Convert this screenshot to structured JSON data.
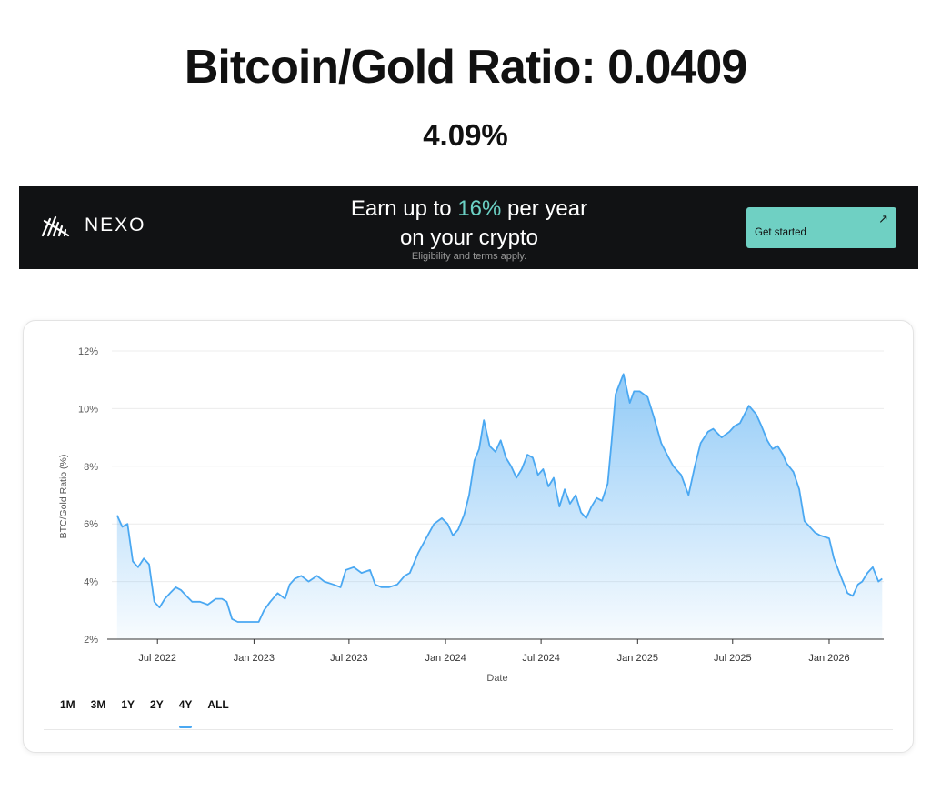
{
  "header": {
    "title": "Bitcoin/Gold Ratio: 0.0409",
    "subtitle": "4.09%"
  },
  "ad": {
    "logo_text": "NEXO",
    "headline_pre": "Earn up to ",
    "headline_highlight": "16%",
    "headline_post": " per year",
    "headline_line2": "on your crypto",
    "fineprint": "Eligibility and terms apply.",
    "cta_label": "Get started",
    "cta_icon": "arrow-up-right-icon",
    "accent_color": "#6fd0c3"
  },
  "range_tabs": {
    "items": [
      "1M",
      "3M",
      "1Y",
      "2Y",
      "4Y",
      "ALL"
    ],
    "active": "4Y",
    "active_color": "#4aa8f2"
  },
  "chart_data": {
    "type": "area",
    "title": "",
    "xlabel": "Date",
    "ylabel": "BTC/Gold Ratio (%)",
    "ylim": [
      2,
      12
    ],
    "yticks": [
      "2%",
      "4%",
      "6%",
      "8%",
      "10%",
      "12%"
    ],
    "xlim": [
      "2022-04-05",
      "2026-04-15"
    ],
    "xticks": [
      {
        "date": "2022-07-01",
        "label": "Jul 2022"
      },
      {
        "date": "2023-01-01",
        "label": "Jan 2023"
      },
      {
        "date": "2023-07-01",
        "label": "Jul 2023"
      },
      {
        "date": "2024-01-01",
        "label": "Jan 2024"
      },
      {
        "date": "2024-07-01",
        "label": "Jul 2024"
      },
      {
        "date": "2025-01-01",
        "label": "Jan 2025"
      },
      {
        "date": "2025-07-01",
        "label": "Jul 2025"
      },
      {
        "date": "2026-01-01",
        "label": "Jan 2026"
      }
    ],
    "grid": true,
    "line_color": "#4aa8f2",
    "series": [
      {
        "x": [
          "2022-04-15",
          "2022-04-25",
          "2022-05-05",
          "2022-05-15",
          "2022-05-25",
          "2022-06-05",
          "2022-06-15",
          "2022-06-25",
          "2022-07-05",
          "2022-07-15",
          "2022-07-25",
          "2022-08-05",
          "2022-08-15",
          "2022-08-25",
          "2022-09-05",
          "2022-09-20",
          "2022-10-05",
          "2022-10-20",
          "2022-11-01",
          "2022-11-10",
          "2022-11-20",
          "2022-12-01",
          "2022-12-15",
          "2023-01-01",
          "2023-01-10",
          "2023-01-20",
          "2023-02-01",
          "2023-02-15",
          "2023-03-01",
          "2023-03-10",
          "2023-03-20",
          "2023-04-01",
          "2023-04-15",
          "2023-05-01",
          "2023-05-15",
          "2023-06-01",
          "2023-06-15",
          "2023-06-25",
          "2023-07-10",
          "2023-07-25",
          "2023-08-10",
          "2023-08-20",
          "2023-09-01",
          "2023-09-15",
          "2023-10-01",
          "2023-10-15",
          "2023-10-25",
          "2023-11-10",
          "2023-11-25",
          "2023-12-10",
          "2023-12-25",
          "2024-01-05",
          "2024-01-15",
          "2024-01-25",
          "2024-02-05",
          "2024-02-15",
          "2024-02-25",
          "2024-03-05",
          "2024-03-14",
          "2024-03-25",
          "2024-04-05",
          "2024-04-15",
          "2024-04-25",
          "2024-05-05",
          "2024-05-15",
          "2024-05-25",
          "2024-06-05",
          "2024-06-15",
          "2024-06-25",
          "2024-07-05",
          "2024-07-15",
          "2024-07-25",
          "2024-08-05",
          "2024-08-15",
          "2024-08-25",
          "2024-09-05",
          "2024-09-15",
          "2024-09-25",
          "2024-10-05",
          "2024-10-15",
          "2024-10-25",
          "2024-11-05",
          "2024-11-12",
          "2024-11-20",
          "2024-12-05",
          "2024-12-17",
          "2024-12-25",
          "2025-01-05",
          "2025-01-20",
          "2025-02-01",
          "2025-02-15",
          "2025-03-01",
          "2025-03-10",
          "2025-03-25",
          "2025-04-08",
          "2025-04-20",
          "2025-05-01",
          "2025-05-15",
          "2025-05-25",
          "2025-06-10",
          "2025-06-25",
          "2025-07-05",
          "2025-07-15",
          "2025-08-01",
          "2025-08-15",
          "2025-08-25",
          "2025-09-05",
          "2025-09-15",
          "2025-09-25",
          "2025-10-05",
          "2025-10-12",
          "2025-10-25",
          "2025-11-05",
          "2025-11-15",
          "2025-11-25",
          "2025-12-05",
          "2025-12-15",
          "2026-01-01",
          "2026-01-10",
          "2026-01-25",
          "2026-02-05",
          "2026-02-15",
          "2026-02-25",
          "2026-03-05",
          "2026-03-15",
          "2026-03-25",
          "2026-04-05",
          "2026-04-12"
        ],
        "y": [
          6.3,
          5.9,
          6.0,
          4.7,
          4.5,
          4.8,
          4.6,
          3.3,
          3.1,
          3.4,
          3.6,
          3.8,
          3.7,
          3.5,
          3.3,
          3.3,
          3.2,
          3.4,
          3.4,
          3.3,
          2.7,
          2.6,
          2.6,
          2.6,
          2.6,
          3.0,
          3.3,
          3.6,
          3.4,
          3.9,
          4.1,
          4.2,
          4.0,
          4.2,
          4.0,
          3.9,
          3.8,
          4.4,
          4.5,
          4.3,
          4.4,
          3.9,
          3.8,
          3.8,
          3.9,
          4.2,
          4.3,
          5.0,
          5.5,
          6.0,
          6.2,
          6.0,
          5.6,
          5.8,
          6.3,
          7.0,
          8.2,
          8.6,
          9.6,
          8.7,
          8.5,
          8.9,
          8.3,
          8.0,
          7.6,
          7.9,
          8.4,
          8.3,
          7.7,
          7.9,
          7.3,
          7.6,
          6.6,
          7.2,
          6.7,
          7.0,
          6.4,
          6.2,
          6.6,
          6.9,
          6.8,
          7.4,
          8.8,
          10.5,
          11.2,
          10.2,
          10.6,
          10.6,
          10.4,
          9.7,
          8.8,
          8.3,
          8.0,
          7.7,
          7.0,
          8.0,
          8.8,
          9.2,
          9.3,
          9.0,
          9.2,
          9.4,
          9.5,
          10.1,
          9.8,
          9.4,
          8.9,
          8.6,
          8.7,
          8.4,
          8.1,
          7.8,
          7.2,
          6.1,
          5.9,
          5.7,
          5.6,
          5.5,
          4.8,
          4.1,
          3.6,
          3.5,
          3.9,
          4.0,
          4.3,
          4.5,
          4.0,
          4.1
        ]
      }
    ]
  }
}
